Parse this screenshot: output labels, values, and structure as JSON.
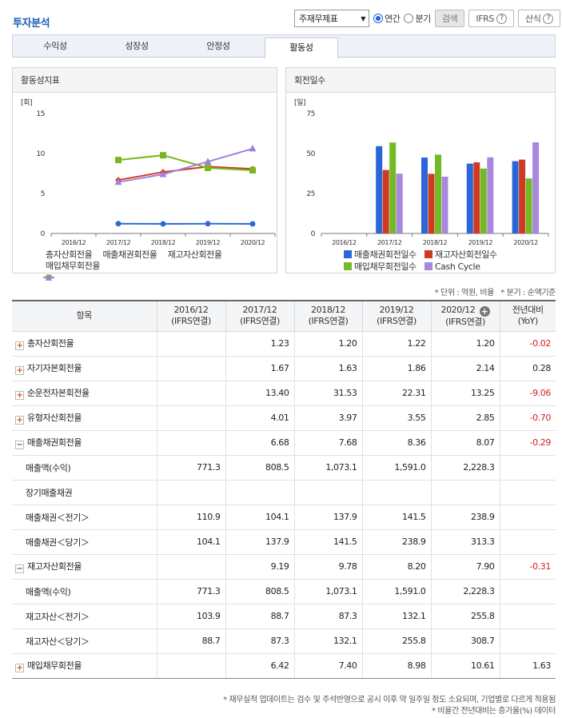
{
  "header": {
    "title": "투자분석"
  },
  "controls": {
    "select_value": "주재무제표",
    "radio1": "연간",
    "radio2": "분기",
    "search": "검색",
    "ifrs": "IFRS",
    "formula": "산식",
    "q": "?"
  },
  "tabs": [
    "수익성",
    "성장성",
    "안정성",
    "활동성"
  ],
  "active_tab": 3,
  "left_chart": {
    "panel_title": "활동성지표",
    "unit": "[회]",
    "chart_data": {
      "type": "line",
      "categories": [
        "2016/12",
        "2017/12",
        "2018/12",
        "2019/12",
        "2020/12"
      ],
      "ylim": [
        0,
        15
      ],
      "yticks": [
        "15",
        "10",
        "5",
        "0"
      ],
      "series": [
        {
          "name": "총자산회전율",
          "color": "#2e6ad6",
          "marker": "circle",
          "values": [
            null,
            1.23,
            1.2,
            1.22,
            1.2
          ]
        },
        {
          "name": "매출채권회전율",
          "color": "#d43a1f",
          "marker": "diamond",
          "values": [
            null,
            6.68,
            7.68,
            8.36,
            8.07
          ]
        },
        {
          "name": "재고자산회전율",
          "color": "#77b91e",
          "marker": "square",
          "values": [
            null,
            9.19,
            9.78,
            8.2,
            7.9
          ]
        },
        {
          "name": "매입채무회전율",
          "color": "#a37fde",
          "marker": "triangle",
          "values": [
            null,
            6.42,
            7.4,
            8.98,
            10.61
          ]
        }
      ]
    }
  },
  "right_chart": {
    "panel_title": "회전일수",
    "unit": "[일]",
    "chart_data": {
      "type": "bar",
      "categories": [
        "2016/12",
        "2017/12",
        "2018/12",
        "2019/12",
        "2020/12"
      ],
      "ylim": [
        0,
        75
      ],
      "yticks": [
        "75",
        "50",
        "25",
        "0"
      ],
      "series": [
        {
          "name": "매출채권회전일수",
          "color": "#2a66d8",
          "values": [
            null,
            54.6,
            47.5,
            43.7,
            45.2
          ]
        },
        {
          "name": "재고자산회전일수",
          "color": "#cf3a22",
          "values": [
            null,
            39.7,
            37.3,
            44.5,
            46.2
          ]
        },
        {
          "name": "매입채무회전일수",
          "color": "#74ba25",
          "values": [
            null,
            56.9,
            49.3,
            40.6,
            34.4
          ]
        },
        {
          "name": "Cash Cycle",
          "color": "#a788de",
          "values": [
            null,
            37.4,
            35.5,
            47.6,
            57.0
          ]
        }
      ]
    }
  },
  "notes": {
    "unit": "* 단위 : 억원, 비율",
    "quarter": "* 분기 : 순액기준"
  },
  "table": {
    "header_item": "항목",
    "columns": [
      {
        "year": "2016/12",
        "basis": "(IFRS연결)"
      },
      {
        "year": "2017/12",
        "basis": "(IFRS연결)"
      },
      {
        "year": "2018/12",
        "basis": "(IFRS연결)"
      },
      {
        "year": "2019/12",
        "basis": "(IFRS연결)"
      },
      {
        "year": "2020/12",
        "basis": "(IFRS연결)"
      }
    ],
    "yoy": {
      "l1": "전년대비",
      "l2": "(YoY)"
    },
    "rows": [
      {
        "label": "총자산회전율",
        "type": "plus",
        "cells": [
          "",
          "1.23",
          "1.20",
          "1.22",
          "1.20"
        ],
        "yoy": "-0.02",
        "neg": true
      },
      {
        "label": "자기자본회전율",
        "type": "plus",
        "cells": [
          "",
          "1.67",
          "1.63",
          "1.86",
          "2.14"
        ],
        "yoy": "0.28",
        "neg": false
      },
      {
        "label": "순운전자본회전율",
        "type": "plus",
        "cells": [
          "",
          "13.40",
          "31.53",
          "22.31",
          "13.25"
        ],
        "yoy": "-9.06",
        "neg": true
      },
      {
        "label": "유형자산회전율",
        "type": "plus",
        "cells": [
          "",
          "4.01",
          "3.97",
          "3.55",
          "2.85"
        ],
        "yoy": "-0.70",
        "neg": true
      },
      {
        "label": "매출채권회전율",
        "type": "minus",
        "cells": [
          "",
          "6.68",
          "7.68",
          "8.36",
          "8.07"
        ],
        "yoy": "-0.29",
        "neg": true
      },
      {
        "label": "매출액(수익)",
        "type": "sub",
        "cells": [
          "771.3",
          "808.5",
          "1,073.1",
          "1,591.0",
          "2,228.3"
        ],
        "yoy": "",
        "neg": false
      },
      {
        "label": "장기매출채권",
        "type": "sub",
        "cells": [
          "",
          "",
          "",
          "",
          ""
        ],
        "yoy": "",
        "neg": false
      },
      {
        "label": "매출채권＜전기＞",
        "type": "sub",
        "cells": [
          "110.9",
          "104.1",
          "137.9",
          "141.5",
          "238.9"
        ],
        "yoy": "",
        "neg": false
      },
      {
        "label": "매출채권＜당기＞",
        "type": "sub",
        "cells": [
          "104.1",
          "137.9",
          "141.5",
          "238.9",
          "313.3"
        ],
        "yoy": "",
        "neg": false
      },
      {
        "label": "재고자산회전율",
        "type": "minus",
        "cells": [
          "",
          "9.19",
          "9.78",
          "8.20",
          "7.90"
        ],
        "yoy": "-0.31",
        "neg": true
      },
      {
        "label": "매출액(수익)",
        "type": "sub",
        "cells": [
          "771.3",
          "808.5",
          "1,073.1",
          "1,591.0",
          "2,228.3"
        ],
        "yoy": "",
        "neg": false
      },
      {
        "label": "재고자산＜전기＞",
        "type": "sub",
        "cells": [
          "103.9",
          "88.7",
          "87.3",
          "132.1",
          "255.8"
        ],
        "yoy": "",
        "neg": false
      },
      {
        "label": "재고자산＜당기＞",
        "type": "sub",
        "cells": [
          "88.7",
          "87.3",
          "132.1",
          "255.8",
          "308.7"
        ],
        "yoy": "",
        "neg": false
      },
      {
        "label": "매입채무회전율",
        "type": "plus",
        "cells": [
          "",
          "6.42",
          "7.40",
          "8.98",
          "10.61"
        ],
        "yoy": "1.63",
        "neg": false
      }
    ]
  },
  "footer": {
    "line1": "* 재무실적 업데이트는 검수 및 주석반영으로 공시 이후 약 일주일 정도 소요되며, 기업별로 다르게 적용됨",
    "line2": "* 비율간 전년대비는 증가율(%) 데이터"
  }
}
